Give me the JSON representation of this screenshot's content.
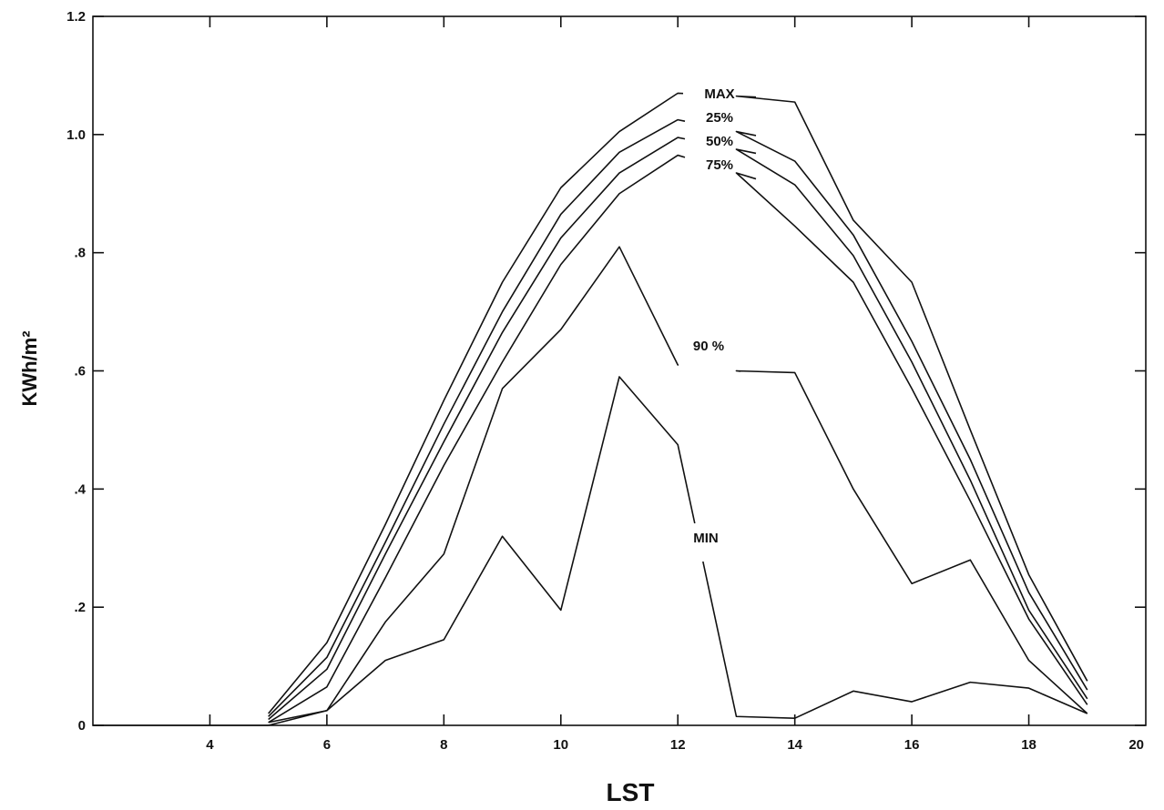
{
  "chart_data": {
    "type": "line",
    "title": "",
    "xlabel": "LST",
    "ylabel": "KWh/m²",
    "xlim": [
      2,
      20
    ],
    "ylim": [
      0,
      1.2
    ],
    "grid": false,
    "x_ticks": [
      4,
      6,
      8,
      10,
      12,
      14,
      16,
      18,
      20
    ],
    "x_tick_labels": [
      "4",
      "6",
      "8",
      "10",
      "12",
      "14",
      "16",
      "18",
      "20"
    ],
    "y_ticks": [
      0,
      0.2,
      0.4,
      0.6,
      0.8,
      1.0,
      1.2
    ],
    "y_tick_labels": [
      "0",
      ".2",
      ".4",
      ".6",
      ".8",
      "1.0",
      "1.2"
    ],
    "x": [
      5,
      6,
      7,
      8,
      9,
      10,
      11,
      12,
      13,
      14,
      15,
      16,
      17,
      18,
      19
    ],
    "series": [
      {
        "name": "MAX",
        "values": [
          0.02,
          0.14,
          0.34,
          0.55,
          0.75,
          0.91,
          1.005,
          1.07,
          1.065,
          1.055,
          0.855,
          0.75,
          0.5,
          0.255,
          0.075
        ]
      },
      {
        "name": "25%",
        "values": [
          0.015,
          0.115,
          0.31,
          0.51,
          0.7,
          0.865,
          0.97,
          1.025,
          1.005,
          0.955,
          0.83,
          0.65,
          0.45,
          0.225,
          0.06
        ]
      },
      {
        "name": "50%",
        "values": [
          0.01,
          0.095,
          0.29,
          0.48,
          0.665,
          0.825,
          0.935,
          0.995,
          0.975,
          0.915,
          0.795,
          0.615,
          0.415,
          0.195,
          0.045
        ]
      },
      {
        "name": "75%",
        "values": [
          0.005,
          0.065,
          0.25,
          0.44,
          0.615,
          0.78,
          0.9,
          0.965,
          0.935,
          0.845,
          0.75,
          0.57,
          0.38,
          0.18,
          0.035
        ]
      },
      {
        "name": "90 %",
        "values": [
          0.005,
          0.025,
          0.175,
          0.29,
          0.57,
          0.67,
          0.81,
          0.61,
          0.6,
          0.597,
          0.4,
          0.24,
          0.28,
          0.11,
          0.02
        ]
      },
      {
        "name": "MIN",
        "values": [
          0.0,
          0.025,
          0.11,
          0.145,
          0.32,
          0.195,
          0.59,
          0.475,
          0.015,
          0.012,
          0.058,
          0.04,
          0.073,
          0.063,
          0.02
        ]
      }
    ],
    "baseline": {
      "x": [
        2,
        5
      ],
      "value": 0
    }
  }
}
